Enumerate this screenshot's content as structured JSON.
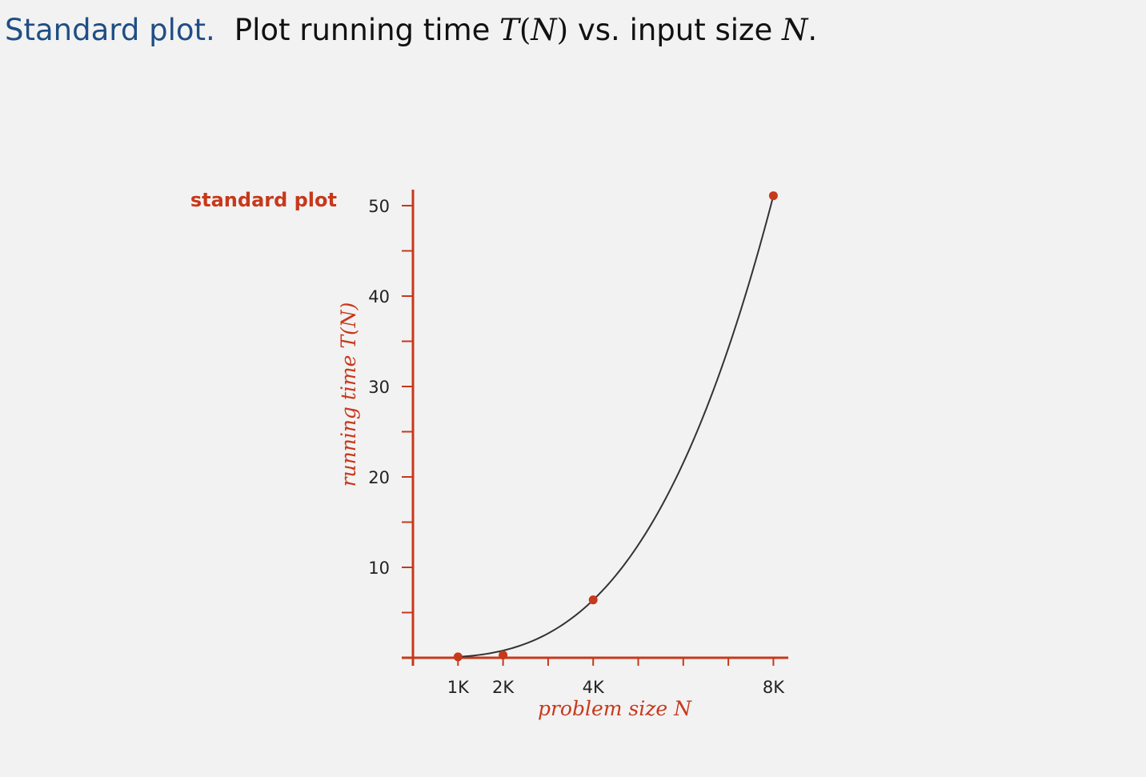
{
  "header": {
    "lead": "Standard plot.",
    "text_before": "Plot running time ",
    "t": "T",
    "paren_open": "(",
    "n": "N",
    "paren_close": ")",
    "text_after": " vs. input size ",
    "n2": "N",
    "period": "."
  },
  "colors": {
    "accent": "#c8381b",
    "heading": "#1f4e86",
    "curve": "#333333",
    "text": "#222222",
    "background": "#f2f2f2"
  },
  "chart_data": {
    "type": "line",
    "plot_label": "standard plot",
    "xlabel": "problem size N",
    "ylabel": "running time T(N)",
    "xlim": [
      0,
      8.3
    ],
    "ylim": [
      0,
      50
    ],
    "x_minor_ticks": [
      1,
      2,
      3,
      4,
      5,
      6,
      7,
      8
    ],
    "x_ticks": [
      {
        "value": 1,
        "label": "1K"
      },
      {
        "value": 2,
        "label": "2K"
      },
      {
        "value": 4,
        "label": "4K"
      },
      {
        "value": 8,
        "label": "8K"
      }
    ],
    "y_minor_ticks": [
      5,
      10,
      15,
      20,
      25,
      30,
      35,
      40,
      45,
      50
    ],
    "y_ticks": [
      {
        "value": 10,
        "label": "10"
      },
      {
        "value": 20,
        "label": "20"
      },
      {
        "value": 30,
        "label": "30"
      },
      {
        "value": 40,
        "label": "40"
      },
      {
        "value": 50,
        "label": "50"
      }
    ],
    "points": [
      {
        "x": 1,
        "y": 0.1
      },
      {
        "x": 2,
        "y": 0.3
      },
      {
        "x": 4,
        "y": 6.4
      },
      {
        "x": 8,
        "y": 51.1
      }
    ],
    "grid": false,
    "legend": "none"
  }
}
